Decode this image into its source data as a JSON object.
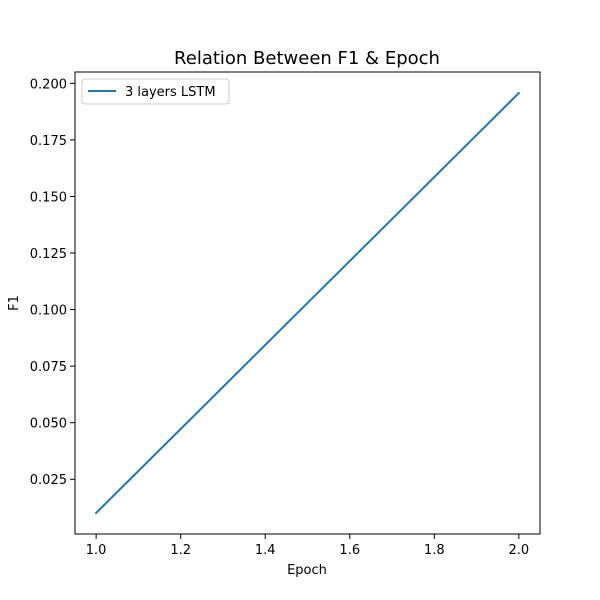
{
  "chart_data": {
    "type": "line",
    "title": "Relation Between F1 & Epoch",
    "xlabel": "Epoch",
    "ylabel": "F1",
    "xlim": [
      0.95,
      2.05
    ],
    "ylim": [
      0.0008,
      0.205
    ],
    "xticks": [
      1.0,
      1.2,
      1.4,
      1.6,
      1.8,
      2.0
    ],
    "xtick_labels": [
      "1.0",
      "1.2",
      "1.4",
      "1.6",
      "1.8",
      "2.0"
    ],
    "yticks": [
      0.025,
      0.05,
      0.075,
      0.1,
      0.125,
      0.15,
      0.175,
      0.2
    ],
    "ytick_labels": [
      "0.025",
      "0.050",
      "0.075",
      "0.100",
      "0.125",
      "0.150",
      "0.175",
      "0.200"
    ],
    "grid": false,
    "legend_position": "top-left",
    "series": [
      {
        "name": "3 layers LSTM",
        "color": "#1f77b4",
        "x": [
          1.0,
          2.0
        ],
        "y": [
          0.0101,
          0.1957
        ]
      }
    ]
  }
}
